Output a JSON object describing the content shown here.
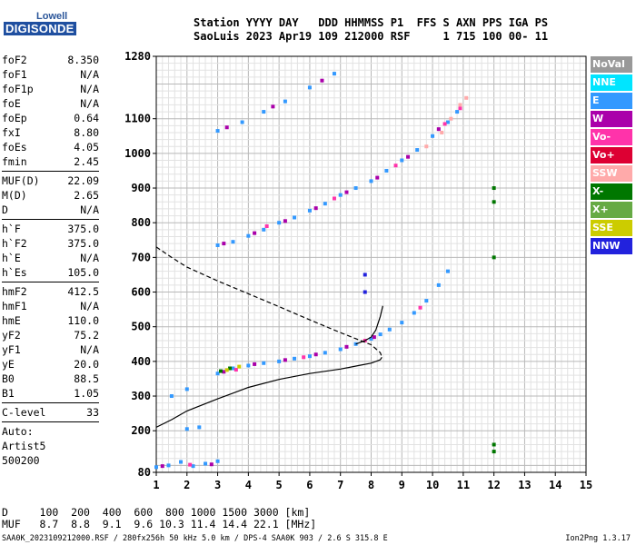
{
  "logo": {
    "brand": "Lowell",
    "product": "DIGISONDE"
  },
  "header": {
    "line1": "Station YYYY DAY   DDD HHMMSS P1  FFS S AXN PPS IGA PS",
    "line2": "SaoLuis 2023 Apr19 109 212000 RSF     1 715 100 00- 11"
  },
  "params": [
    {
      "k": "foF2",
      "v": "8.350"
    },
    {
      "k": "foF1",
      "v": "N/A"
    },
    {
      "k": "foF1p",
      "v": "N/A"
    },
    {
      "k": "foE",
      "v": "N/A"
    },
    {
      "k": "foEp",
      "v": "0.64"
    },
    {
      "k": "fxI",
      "v": "8.80"
    },
    {
      "k": "foEs",
      "v": "4.05"
    },
    {
      "k": "fmin",
      "v": "2.45"
    },
    {
      "sep": true
    },
    {
      "k": "MUF(D)",
      "v": "22.09"
    },
    {
      "k": "M(D)",
      "v": "2.65"
    },
    {
      "k": "D",
      "v": "N/A"
    },
    {
      "sep": true
    },
    {
      "k": "h`F",
      "v": "375.0"
    },
    {
      "k": "h`F2",
      "v": "375.0"
    },
    {
      "k": "h`E",
      "v": "N/A"
    },
    {
      "k": "h`Es",
      "v": "105.0"
    },
    {
      "sep": true
    },
    {
      "k": "hmF2",
      "v": "412.5"
    },
    {
      "k": "hmF1",
      "v": "N/A"
    },
    {
      "k": "hmE",
      "v": "110.0"
    },
    {
      "k": "yF2",
      "v": "75.2"
    },
    {
      "k": "yF1",
      "v": "N/A"
    },
    {
      "k": "yE",
      "v": "20.0"
    },
    {
      "k": "B0",
      "v": "88.5"
    },
    {
      "k": "B1",
      "v": "1.05"
    },
    {
      "sep": true
    },
    {
      "k": "C-level",
      "v": "33"
    },
    {
      "sep": true
    },
    {
      "t": "Auto:"
    },
    {
      "t": "Artist5"
    },
    {
      "t": "500200"
    }
  ],
  "legend": [
    {
      "label": "NoVal",
      "color": "#999999"
    },
    {
      "label": "NNE",
      "color": "#00e5ff"
    },
    {
      "label": "E",
      "color": "#3399ff"
    },
    {
      "label": "W",
      "color": "#aa00aa"
    },
    {
      "label": "Vo-",
      "color": "#ff33aa"
    },
    {
      "label": "Vo+",
      "color": "#dd0033"
    },
    {
      "label": "SSW",
      "color": "#ffaaaa"
    },
    {
      "label": "X-",
      "color": "#007700"
    },
    {
      "label": "X+",
      "color": "#66aa44"
    },
    {
      "label": "SSE",
      "color": "#cccc00"
    },
    {
      "label": "NNW",
      "color": "#2222dd"
    }
  ],
  "footer": {
    "line1": "D     100  200  400  600  800 1000 1500 3000 [km]",
    "line2": "MUF   8.7  8.8  9.1  9.6 10.3 11.4 14.4 22.1 [MHz]",
    "line3": "SAA0K_2023109212000.RSF / 280fx256h 50 kHz 5.0 km / DPS-4 SAA0K 903 / 2.6 S 315.8 E",
    "version": "Ion2Png 1.3.17"
  },
  "chart_data": {
    "type": "scatter",
    "xlabel": "",
    "ylabel": "",
    "xlim": [
      1,
      15
    ],
    "ylim": [
      80,
      1280
    ],
    "xticks": [
      1,
      2,
      3,
      4,
      5,
      6,
      7,
      8,
      9,
      10,
      11,
      12,
      13,
      14,
      15
    ],
    "yticks": [
      80,
      200,
      300,
      400,
      500,
      600,
      700,
      800,
      900,
      1000,
      1100,
      1280
    ],
    "grid": true,
    "series": [
      {
        "kind": "dots",
        "color": "#3399ff",
        "points": [
          [
            1.0,
            95
          ],
          [
            1.4,
            100
          ],
          [
            1.8,
            110
          ],
          [
            2.2,
            98
          ],
          [
            2.6,
            105
          ],
          [
            3.0,
            112
          ],
          [
            2.0,
            205
          ],
          [
            2.4,
            210
          ],
          [
            1.5,
            300
          ],
          [
            2.0,
            320
          ],
          [
            3.0,
            365
          ],
          [
            3.5,
            380
          ],
          [
            4.0,
            388
          ],
          [
            4.5,
            395
          ],
          [
            5.0,
            400
          ],
          [
            5.5,
            408
          ],
          [
            6.0,
            415
          ],
          [
            6.5,
            425
          ],
          [
            7.0,
            435
          ],
          [
            7.5,
            450
          ],
          [
            8.0,
            465
          ],
          [
            8.3,
            478
          ],
          [
            8.6,
            492
          ],
          [
            9.0,
            512
          ],
          [
            9.4,
            540
          ],
          [
            9.8,
            575
          ],
          [
            10.2,
            620
          ],
          [
            10.5,
            660
          ],
          [
            3.0,
            735
          ],
          [
            3.5,
            745
          ],
          [
            4.0,
            762
          ],
          [
            4.5,
            780
          ],
          [
            5.0,
            800
          ],
          [
            5.5,
            815
          ],
          [
            6.0,
            835
          ],
          [
            6.5,
            855
          ],
          [
            7.0,
            880
          ],
          [
            7.5,
            900
          ],
          [
            8.0,
            920
          ],
          [
            8.5,
            950
          ],
          [
            9.0,
            980
          ],
          [
            9.5,
            1010
          ],
          [
            10.0,
            1050
          ],
          [
            10.5,
            1090
          ],
          [
            10.8,
            1120
          ],
          [
            3.0,
            1065
          ],
          [
            3.8,
            1090
          ],
          [
            4.5,
            1120
          ],
          [
            5.2,
            1150
          ],
          [
            6.0,
            1190
          ],
          [
            6.8,
            1230
          ]
        ]
      },
      {
        "kind": "dots",
        "color": "#aa00aa",
        "points": [
          [
            1.2,
            98
          ],
          [
            2.8,
            103
          ],
          [
            3.2,
            370
          ],
          [
            4.2,
            392
          ],
          [
            5.2,
            404
          ],
          [
            6.2,
            420
          ],
          [
            7.2,
            442
          ],
          [
            8.1,
            470
          ],
          [
            3.2,
            740
          ],
          [
            4.2,
            770
          ],
          [
            5.2,
            805
          ],
          [
            6.2,
            842
          ],
          [
            7.2,
            888
          ],
          [
            8.2,
            930
          ],
          [
            9.2,
            990
          ],
          [
            10.2,
            1070
          ],
          [
            3.3,
            1075
          ],
          [
            4.8,
            1135
          ],
          [
            6.4,
            1210
          ]
        ]
      },
      {
        "kind": "dots",
        "color": "#ff33aa",
        "points": [
          [
            2.1,
            102
          ],
          [
            3.6,
            376
          ],
          [
            5.8,
            412
          ],
          [
            7.8,
            460
          ],
          [
            9.6,
            555
          ],
          [
            4.6,
            790
          ],
          [
            6.8,
            870
          ],
          [
            8.8,
            965
          ],
          [
            10.4,
            1085
          ],
          [
            10.9,
            1130
          ]
        ]
      },
      {
        "kind": "dots",
        "color": "#ffaaaa",
        "points": [
          [
            10.6,
            1100
          ],
          [
            10.9,
            1140
          ],
          [
            11.1,
            1160
          ],
          [
            10.3,
            1060
          ],
          [
            9.8,
            1020
          ]
        ]
      },
      {
        "kind": "dots",
        "color": "#007700",
        "points": [
          [
            3.1,
            372
          ],
          [
            3.4,
            380
          ],
          [
            12.0,
            900
          ],
          [
            12.0,
            860
          ],
          [
            12.0,
            700
          ],
          [
            12.0,
            160
          ],
          [
            12.0,
            140
          ]
        ]
      },
      {
        "kind": "dots",
        "color": "#cccc00",
        "points": [
          [
            3.3,
            375
          ],
          [
            3.7,
            385
          ]
        ]
      },
      {
        "kind": "dots",
        "color": "#2222dd",
        "points": [
          [
            7.8,
            600
          ],
          [
            7.8,
            650
          ]
        ]
      },
      {
        "kind": "line",
        "style": "dashed",
        "color": "#000000",
        "points": [
          [
            1.0,
            730
          ],
          [
            1.5,
            700
          ],
          [
            2.0,
            672
          ],
          [
            3.0,
            632
          ],
          [
            4.0,
            595
          ],
          [
            5.0,
            558
          ],
          [
            6.0,
            520
          ],
          [
            7.0,
            483
          ],
          [
            7.6,
            462
          ],
          [
            8.0,
            448
          ],
          [
            8.3,
            425
          ],
          [
            8.35,
            412
          ]
        ]
      },
      {
        "kind": "line",
        "style": "solid",
        "color": "#000000",
        "points": [
          [
            1.0,
            210
          ],
          [
            1.5,
            232
          ],
          [
            2.0,
            257
          ],
          [
            3.0,
            292
          ],
          [
            4.0,
            325
          ],
          [
            5.0,
            348
          ],
          [
            6.0,
            365
          ],
          [
            7.0,
            378
          ],
          [
            7.6,
            388
          ],
          [
            8.0,
            395
          ],
          [
            8.3,
            405
          ],
          [
            8.35,
            412
          ]
        ]
      },
      {
        "kind": "line",
        "style": "solid",
        "color": "#000000",
        "points": [
          [
            7.5,
            450
          ],
          [
            7.8,
            460
          ],
          [
            8.0,
            470
          ],
          [
            8.15,
            490
          ],
          [
            8.3,
            530
          ],
          [
            8.38,
            560
          ]
        ]
      }
    ]
  }
}
